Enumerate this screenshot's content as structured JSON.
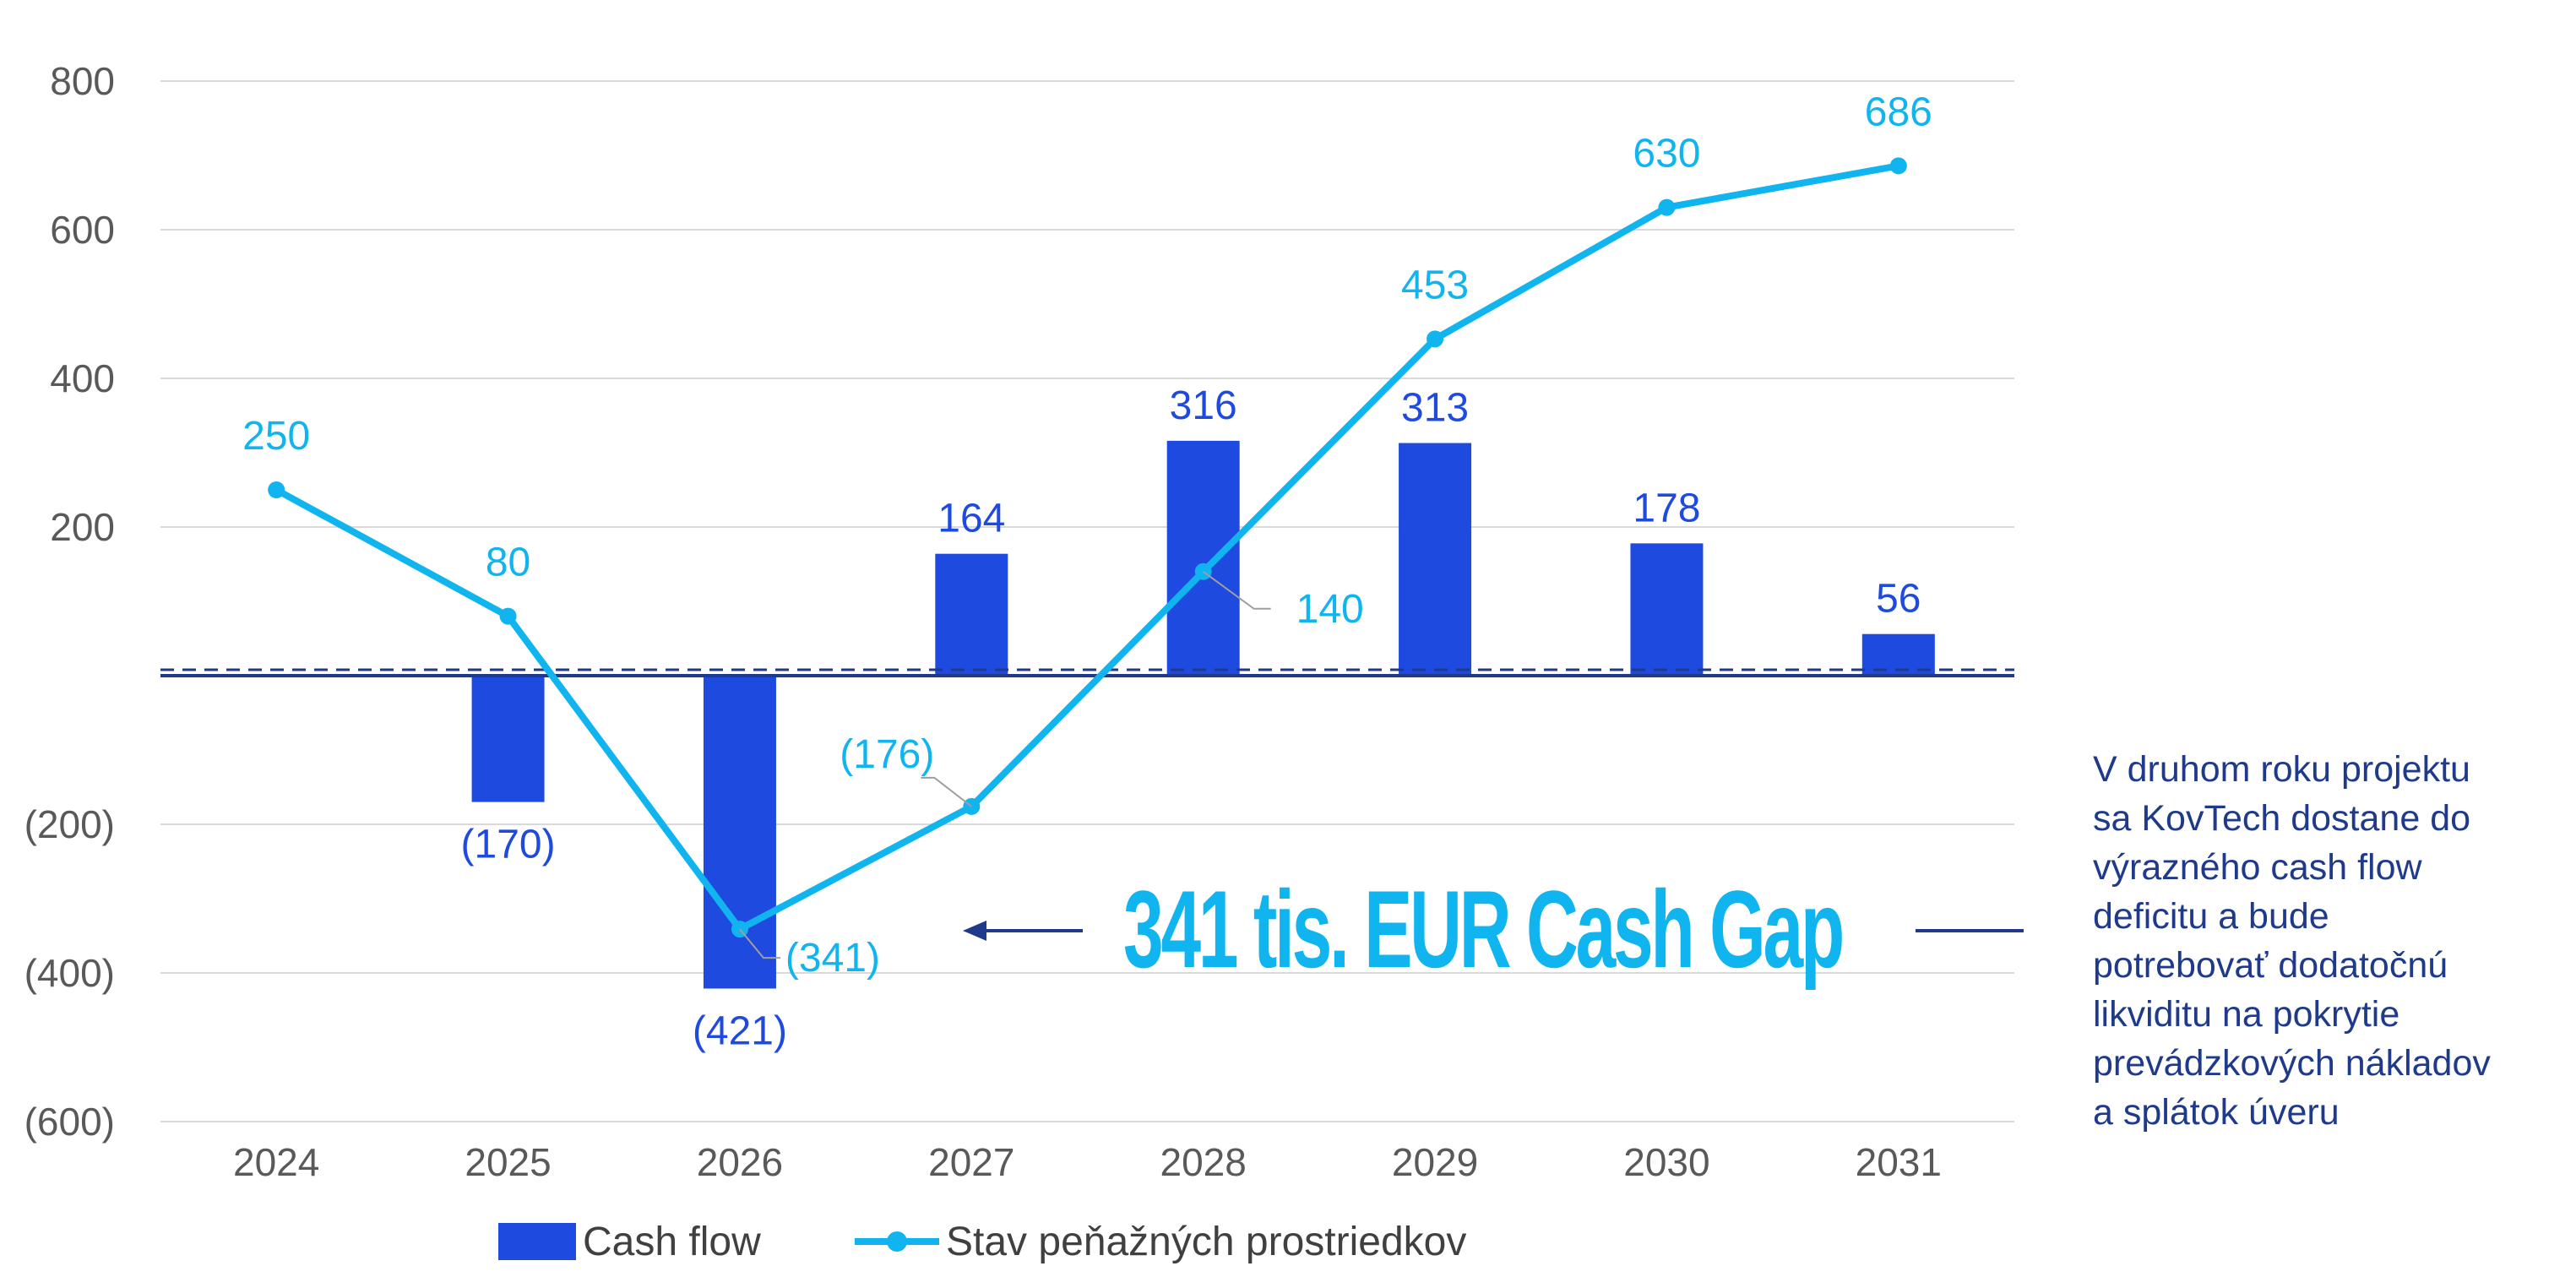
{
  "colors": {
    "bar": "#1F4AE0",
    "line": "#10B4EE",
    "zero_line": "#1F3A8A",
    "annotation": "#1F3A8A",
    "grid": "#D9D9D9",
    "leader": "#9E9E9E"
  },
  "chart_data": {
    "type": "bar",
    "title": "",
    "xlabel": "",
    "ylabel": "",
    "ylim": [
      -600,
      800
    ],
    "yticks": [
      {
        "value": 800,
        "label": "800"
      },
      {
        "value": 600,
        "label": "600"
      },
      {
        "value": 400,
        "label": "400"
      },
      {
        "value": 200,
        "label": "200"
      },
      {
        "value": -200,
        "label": "(200)"
      },
      {
        "value": -400,
        "label": "(400)"
      },
      {
        "value": -600,
        "label": "(600)"
      }
    ],
    "categories": [
      "2024",
      "2025",
      "2026",
      "2027",
      "2028",
      "2029",
      "2030",
      "2031"
    ],
    "series": [
      {
        "name": "Cash flow",
        "kind": "bar",
        "values": [
          null,
          -170,
          -421,
          164,
          316,
          313,
          178,
          56
        ],
        "labels": [
          "",
          "(170)",
          "(421)",
          "164",
          "316",
          "313",
          "178",
          "56"
        ]
      },
      {
        "name": "Stav peňažných prostriedkov",
        "kind": "line",
        "values": [
          250,
          80,
          -341,
          -176,
          140,
          453,
          630,
          686
        ],
        "labels": [
          "250",
          "80",
          "(341)",
          "(176)",
          "140",
          "453",
          "630",
          "686"
        ]
      }
    ],
    "legend_position": "bottom",
    "annotation": {
      "text": "341 tis. EUR Cash Gap"
    }
  },
  "side_note": "V druhom roku projektu\nsa KovTech dostane do\nvýrazného cash flow\ndeficitu a bude\npotrebovať dodatočnú\nlikviditu na pokrytie\nprevádzkových nákladov\na splátok úveru"
}
